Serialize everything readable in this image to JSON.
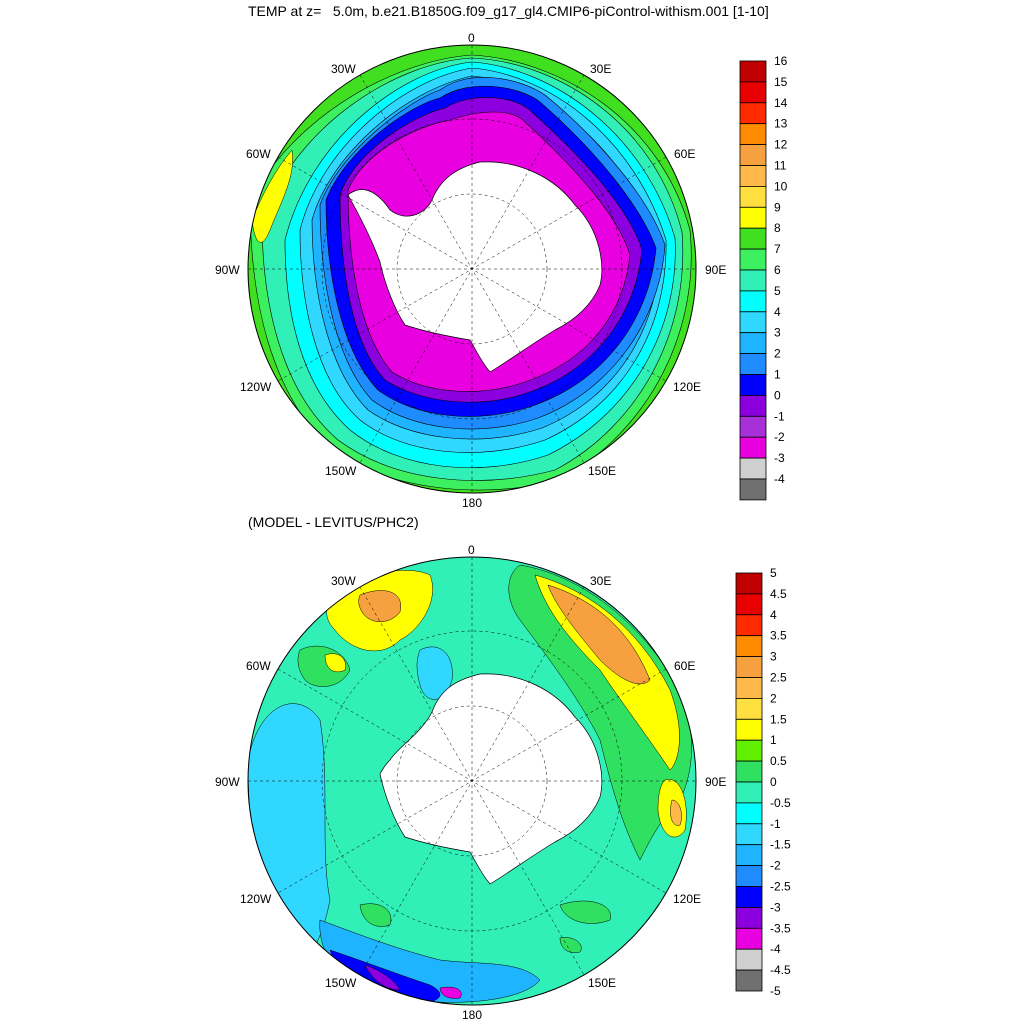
{
  "page": {
    "title": "TEMP at z=   5.0m, b.e21.B1850G.f09_g17_gl4.CMIP6-piControl-withism.001 [1-10]",
    "subtitle": "(MODEL - LEVITUS/PHC2)"
  },
  "maps": [
    {
      "name": "temperature",
      "longitude_labels": {
        "top": "0",
        "top_left": "30W",
        "top_right": "30E",
        "upper_left": "60W",
        "upper_right": "60E",
        "left": "90W",
        "right": "90E",
        "lower_left": "120W",
        "lower_right": "120E",
        "bottom_left": "150W",
        "bottom_right": "150E",
        "bottom": "180"
      },
      "colorbar": {
        "labels": [
          "16",
          "15",
          "14",
          "13",
          "12",
          "11",
          "10",
          "9",
          "8",
          "7",
          "6",
          "5",
          "4",
          "3",
          "2",
          "1",
          "0",
          "-1",
          "-2",
          "-3",
          "-4"
        ],
        "colors": [
          "#c00000",
          "#e80000",
          "#ff2a00",
          "#ff8c00",
          "#f7a040",
          "#ffb84a",
          "#ffe040",
          "#ffff00",
          "#40e020",
          "#3cf060",
          "#30f0b8",
          "#00ffff",
          "#30d8ff",
          "#1eb4ff",
          "#1e8cff",
          "#0000ff",
          "#8c00e0",
          "#a830d8",
          "#e800e0",
          "#d0d0d0",
          "#707070"
        ]
      }
    },
    {
      "name": "difference",
      "longitude_labels": {
        "top": "0",
        "top_left": "30W",
        "top_right": "30E",
        "upper_left": "60W",
        "upper_right": "60E",
        "left": "90W",
        "right": "90E",
        "lower_left": "120W",
        "lower_right": "120E",
        "bottom_left": "150W",
        "bottom_right": "150E",
        "bottom": "180"
      },
      "colorbar": {
        "labels": [
          "5",
          "4.5",
          "4",
          "3.5",
          "3",
          "2.5",
          "2",
          "1.5",
          "1",
          "0.5",
          "0",
          "-0.5",
          "-1",
          "-1.5",
          "-2",
          "-2.5",
          "-3",
          "-3.5",
          "-4",
          "-4.5",
          "-5"
        ],
        "colors": [
          "#c00000",
          "#e80000",
          "#ff2a00",
          "#ff8c00",
          "#f7a040",
          "#ffb84a",
          "#ffe040",
          "#ffff00",
          "#60f000",
          "#30e060",
          "#30f0b8",
          "#00ffff",
          "#30d8ff",
          "#1eb4ff",
          "#1e8cff",
          "#0000ff",
          "#8c00e0",
          "#e800e0",
          "#d0d0d0",
          "#707070"
        ]
      }
    }
  ]
}
